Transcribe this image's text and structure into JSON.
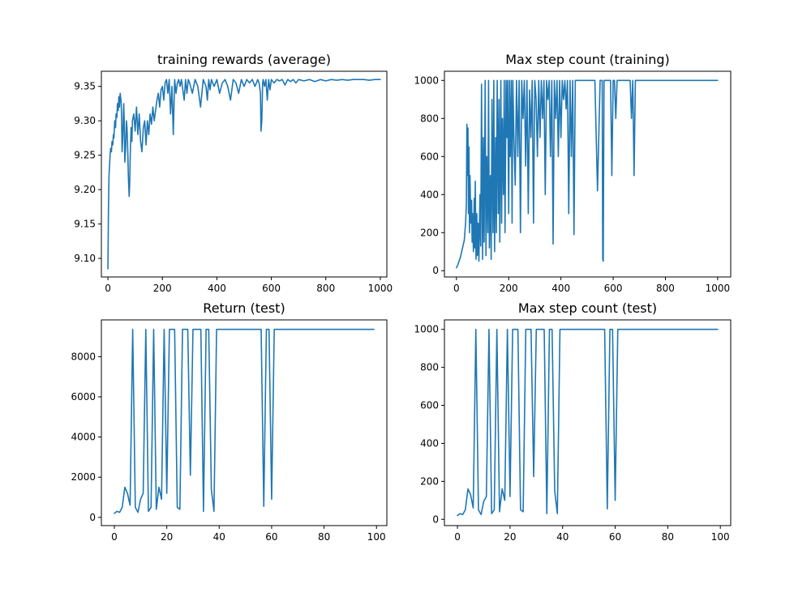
{
  "colors": {
    "series": "#1f77b4",
    "axes": "#000000",
    "background": "#ffffff"
  },
  "chart_data": [
    {
      "type": "line",
      "title": "training rewards (average)",
      "xlabel": "",
      "ylabel": "",
      "xlim": [
        -24,
        1024
      ],
      "ylim": [
        9.073,
        9.372
      ],
      "xticks": [
        0,
        200,
        400,
        600,
        800,
        1000
      ],
      "yticks": [
        9.1,
        9.15,
        9.2,
        9.25,
        9.3,
        9.35
      ],
      "ytick_labels": [
        "9.10",
        "9.15",
        "9.20",
        "9.25",
        "9.30",
        "9.35"
      ],
      "grid": false,
      "series": [
        {
          "x": [
            0,
            2,
            4,
            6,
            8,
            10,
            13,
            15,
            18,
            20,
            22,
            25,
            28,
            30,
            33,
            35,
            38,
            40,
            42,
            45,
            48,
            50,
            52,
            55,
            58,
            60,
            62,
            65,
            68,
            70,
            72,
            75,
            78,
            80,
            82,
            85,
            88,
            90,
            95,
            100,
            105,
            110,
            115,
            120,
            125,
            130,
            135,
            140,
            145,
            150,
            155,
            160,
            165,
            170,
            175,
            180,
            185,
            190,
            195,
            200,
            205,
            210,
            215,
            220,
            225,
            230,
            235,
            240,
            245,
            250,
            255,
            260,
            265,
            270,
            275,
            280,
            285,
            290,
            295,
            300,
            310,
            320,
            330,
            340,
            350,
            360,
            365,
            370,
            375,
            380,
            390,
            400,
            410,
            420,
            430,
            440,
            450,
            460,
            470,
            480,
            490,
            500,
            510,
            520,
            530,
            540,
            550,
            555,
            560,
            562,
            565,
            568,
            570,
            575,
            580,
            585,
            590,
            595,
            600,
            610,
            620,
            630,
            640,
            650,
            660,
            670,
            680,
            690,
            700,
            720,
            740,
            760,
            780,
            800,
            820,
            840,
            860,
            880,
            900,
            920,
            940,
            960,
            980,
            1000
          ],
          "y": [
            9.085,
            9.17,
            9.22,
            9.235,
            9.25,
            9.26,
            9.255,
            9.27,
            9.265,
            9.28,
            9.275,
            9.3,
            9.29,
            9.31,
            9.305,
            9.325,
            9.315,
            9.335,
            9.32,
            9.34,
            9.33,
            9.31,
            9.255,
            9.28,
            9.325,
            9.3,
            9.24,
            9.26,
            9.3,
            9.29,
            9.27,
            9.22,
            9.19,
            9.21,
            9.25,
            9.29,
            9.27,
            9.3,
            9.31,
            9.285,
            9.32,
            9.28,
            9.31,
            9.27,
            9.255,
            9.29,
            9.3,
            9.265,
            9.3,
            9.28,
            9.31,
            9.295,
            9.32,
            9.3,
            9.315,
            9.33,
            9.34,
            9.32,
            9.345,
            9.35,
            9.33,
            9.355,
            9.36,
            9.34,
            9.36,
            9.31,
            9.35,
            9.28,
            9.36,
            9.34,
            9.355,
            9.36,
            9.35,
            9.36,
            9.345,
            9.33,
            9.36,
            9.34,
            9.36,
            9.355,
            9.34,
            9.36,
            9.35,
            9.32,
            9.36,
            9.35,
            9.33,
            9.36,
            9.345,
            9.36,
            9.35,
            9.36,
            9.34,
            9.355,
            9.36,
            9.35,
            9.33,
            9.36,
            9.355,
            9.34,
            9.36,
            9.35,
            9.36,
            9.355,
            9.36,
            9.35,
            9.36,
            9.355,
            9.34,
            9.285,
            9.3,
            9.355,
            9.36,
            9.35,
            9.36,
            9.33,
            9.36,
            9.345,
            9.36,
            9.355,
            9.36,
            9.358,
            9.36,
            9.352,
            9.36,
            9.357,
            9.36,
            9.355,
            9.36,
            9.358,
            9.36,
            9.357,
            9.36,
            9.358,
            9.36,
            9.359,
            9.36,
            9.359,
            9.36,
            9.36,
            9.36,
            9.359,
            9.36,
            9.36
          ]
        }
      ]
    },
    {
      "type": "line",
      "title": "Max step count (training)",
      "xlabel": "",
      "ylabel": "",
      "xlim": [
        -46,
        1050
      ],
      "ylim": [
        -33,
        1048
      ],
      "xticks": [
        0,
        200,
        400,
        600,
        800,
        1000
      ],
      "yticks": [
        0,
        200,
        400,
        600,
        800,
        1000
      ],
      "ytick_labels": [
        "0",
        "200",
        "400",
        "600",
        "800",
        "1000"
      ],
      "grid": false,
      "series": [
        {
          "x": [
            0,
            5,
            10,
            15,
            20,
            25,
            30,
            35,
            38,
            40,
            42,
            44,
            46,
            48,
            50,
            52,
            55,
            58,
            60,
            62,
            65,
            68,
            70,
            72,
            75,
            78,
            80,
            83,
            86,
            90,
            93,
            96,
            100,
            103,
            106,
            110,
            113,
            116,
            120,
            123,
            126,
            130,
            133,
            136,
            140,
            143,
            146,
            150,
            153,
            156,
            160,
            163,
            166,
            170,
            173,
            176,
            180,
            183,
            186,
            190,
            193,
            196,
            200,
            203,
            206,
            210,
            213,
            216,
            220,
            225,
            230,
            235,
            240,
            245,
            250,
            255,
            260,
            265,
            270,
            275,
            280,
            285,
            290,
            295,
            300,
            305,
            310,
            315,
            320,
            325,
            330,
            335,
            340,
            345,
            350,
            355,
            360,
            365,
            370,
            375,
            380,
            385,
            390,
            395,
            400,
            405,
            410,
            415,
            420,
            425,
            430,
            435,
            440,
            445,
            450,
            455,
            460,
            470,
            480,
            490,
            500,
            510,
            520,
            530,
            540,
            550,
            555,
            558,
            560,
            562,
            565,
            570,
            575,
            580,
            585,
            590,
            595,
            600,
            605,
            610,
            615,
            620,
            630,
            640,
            650,
            660,
            665,
            670,
            675,
            680,
            685,
            690,
            700,
            750,
            800,
            850,
            900,
            950,
            1000
          ],
          "y": [
            15,
            30,
            50,
            70,
            100,
            130,
            160,
            250,
            350,
            770,
            500,
            750,
            300,
            650,
            200,
            500,
            250,
            370,
            150,
            300,
            100,
            380,
            120,
            470,
            60,
            300,
            80,
            250,
            50,
            400,
            130,
            980,
            60,
            700,
            150,
            1000,
            80,
            600,
            200,
            1000,
            120,
            500,
            60,
            900,
            200,
            1000,
            100,
            700,
            200,
            1000,
            300,
            900,
            150,
            1000,
            250,
            800,
            400,
            1000,
            200,
            1000,
            700,
            1000,
            300,
            1000,
            600,
            1000,
            250,
            1000,
            700,
            450,
            1000,
            600,
            1000,
            200,
            1000,
            800,
            1000,
            550,
            1000,
            300,
            950,
            700,
            1000,
            250,
            1000,
            900,
            600,
            1000,
            700,
            1000,
            800,
            1000,
            400,
            1000,
            900,
            1000,
            600,
            1000,
            140,
            1000,
            800,
            1000,
            600,
            1000,
            700,
            1000,
            900,
            1000,
            850,
            1000,
            300,
            1000,
            600,
            1000,
            190,
            1000,
            1000,
            1000,
            1000,
            1000,
            1000,
            1000,
            1000,
            1000,
            420,
            1000,
            1000,
            1000,
            60,
            50,
            1000,
            1000,
            1000,
            1000,
            1000,
            1000,
            500,
            1000,
            1000,
            800,
            1000,
            1000,
            1000,
            1000,
            1000,
            1000,
            1000,
            800,
            1000,
            500,
            1000,
            1000,
            1000,
            1000,
            1000,
            1000,
            1000,
            1000,
            1000
          ]
        }
      ]
    },
    {
      "type": "line",
      "title": "Return (test)",
      "xlabel": "",
      "ylabel": "",
      "xlim": [
        -4.95,
        103.95
      ],
      "ylim": [
        -410,
        9830
      ],
      "xticks": [
        0,
        20,
        40,
        60,
        80,
        100
      ],
      "yticks": [
        0,
        2000,
        4000,
        6000,
        8000
      ],
      "ytick_labels": [
        "0",
        "2000",
        "4000",
        "6000",
        "8000"
      ],
      "grid": false,
      "series": [
        {
          "x": [
            0,
            1,
            2,
            3,
            4,
            5,
            6,
            7,
            8,
            9,
            10,
            11,
            12,
            13,
            14,
            15,
            16,
            17,
            18,
            19,
            20,
            21,
            22,
            23,
            24,
            25,
            26,
            27,
            28,
            29,
            30,
            31,
            32,
            33,
            34,
            35,
            36,
            37,
            38,
            39,
            40,
            41,
            42,
            43,
            44,
            45,
            46,
            47,
            48,
            49,
            50,
            51,
            52,
            53,
            54,
            55,
            56,
            57,
            58,
            59,
            60,
            61,
            62,
            63,
            64,
            65,
            66,
            67,
            68,
            69,
            70,
            71,
            72,
            73,
            74,
            75,
            76,
            77,
            78,
            79,
            80,
            81,
            82,
            83,
            84,
            85,
            86,
            87,
            88,
            89,
            90,
            91,
            92,
            93,
            94,
            95,
            96,
            97,
            98,
            99
          ],
          "y": [
            200,
            300,
            250,
            500,
            1500,
            1200,
            600,
            9360,
            500,
            250,
            900,
            1200,
            9360,
            300,
            500,
            9360,
            400,
            1500,
            900,
            9360,
            1200,
            9360,
            9360,
            9360,
            500,
            400,
            9360,
            9360,
            9360,
            2100,
            9360,
            9360,
            9360,
            9360,
            300,
            9360,
            9360,
            1400,
            300,
            9360,
            9360,
            9360,
            9360,
            9360,
            9360,
            9360,
            9360,
            9360,
            9360,
            9360,
            9360,
            9360,
            9360,
            9360,
            9360,
            9360,
            9360,
            550,
            9360,
            9360,
            900,
            9360,
            9360,
            9360,
            9360,
            9360,
            9360,
            9360,
            9360,
            9360,
            9360,
            9360,
            9360,
            9360,
            9360,
            9360,
            9360,
            9360,
            9360,
            9360,
            9360,
            9360,
            9360,
            9360,
            9360,
            9360,
            9360,
            9360,
            9360,
            9360,
            9360,
            9360,
            9360,
            9360,
            9360,
            9360,
            9360,
            9360,
            9360,
            9360
          ]
        }
      ]
    },
    {
      "type": "line",
      "title": "Max step count (test)",
      "xlabel": "",
      "ylabel": "",
      "xlim": [
        -4.95,
        103.95
      ],
      "ylim": [
        -33,
        1050
      ],
      "xticks": [
        0,
        20,
        40,
        60,
        80,
        100
      ],
      "yticks": [
        0,
        200,
        400,
        600,
        800,
        1000
      ],
      "ytick_labels": [
        "0",
        "200",
        "400",
        "600",
        "800",
        "1000"
      ],
      "grid": false,
      "series": [
        {
          "x": [
            0,
            1,
            2,
            3,
            4,
            5,
            6,
            7,
            8,
            9,
            10,
            11,
            12,
            13,
            14,
            15,
            16,
            17,
            18,
            19,
            20,
            21,
            22,
            23,
            24,
            25,
            26,
            27,
            28,
            29,
            30,
            31,
            32,
            33,
            34,
            35,
            36,
            37,
            38,
            39,
            40,
            41,
            42,
            43,
            44,
            45,
            46,
            47,
            48,
            49,
            50,
            51,
            52,
            53,
            54,
            55,
            56,
            57,
            58,
            59,
            60,
            61,
            62,
            63,
            64,
            65,
            66,
            67,
            68,
            69,
            70,
            71,
            72,
            73,
            74,
            75,
            76,
            77,
            78,
            79,
            80,
            81,
            82,
            83,
            84,
            85,
            86,
            87,
            88,
            89,
            90,
            91,
            92,
            93,
            94,
            95,
            96,
            97,
            98,
            99
          ],
          "y": [
            20,
            30,
            25,
            50,
            160,
            130,
            60,
            1000,
            50,
            25,
            95,
            120,
            1000,
            30,
            50,
            1000,
            40,
            160,
            100,
            1000,
            120,
            1000,
            1000,
            1000,
            50,
            40,
            1000,
            1000,
            1000,
            225,
            1000,
            1000,
            1000,
            1000,
            30,
            1000,
            1000,
            150,
            30,
            1000,
            1000,
            1000,
            1000,
            1000,
            1000,
            1000,
            1000,
            1000,
            1000,
            1000,
            1000,
            1000,
            1000,
            1000,
            1000,
            1000,
            1000,
            55,
            1000,
            1000,
            100,
            1000,
            1000,
            1000,
            1000,
            1000,
            1000,
            1000,
            1000,
            1000,
            1000,
            1000,
            1000,
            1000,
            1000,
            1000,
            1000,
            1000,
            1000,
            1000,
            1000,
            1000,
            1000,
            1000,
            1000,
            1000,
            1000,
            1000,
            1000,
            1000,
            1000,
            1000,
            1000,
            1000,
            1000,
            1000,
            1000,
            1000,
            1000,
            1000
          ]
        }
      ]
    }
  ]
}
